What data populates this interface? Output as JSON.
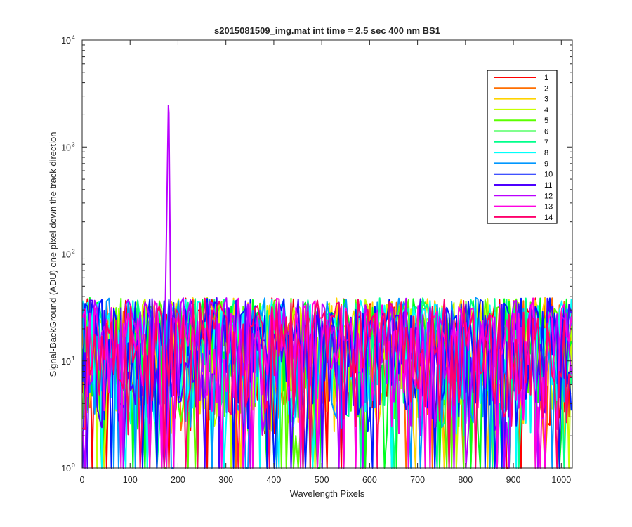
{
  "chart_data": {
    "type": "line",
    "title": "s2015081509_img.mat int time = 2.5 sec  400 nm BS1",
    "xlabel": "Wavelength Pixels",
    "ylabel": "Signal-BackGround (ADU) one pixel down the track direction",
    "xlim": [
      0,
      1023
    ],
    "ylim": [
      1,
      10000
    ],
    "yscale": "log",
    "grid": false,
    "legend_placement": "top-right",
    "x_ticks": [
      "0",
      "100",
      "200",
      "300",
      "400",
      "500",
      "600",
      "700",
      "800",
      "900",
      "1000"
    ],
    "y_ticks": [
      {
        "base": "10",
        "exp": "0"
      },
      {
        "base": "10",
        "exp": "1"
      },
      {
        "base": "10",
        "exp": "2"
      },
      {
        "base": "10",
        "exp": "3"
      },
      {
        "base": "10",
        "exp": "4"
      }
    ],
    "x_range": [
      1,
      1023
    ],
    "noise_range_adu": [
      1,
      45
    ],
    "series": [
      {
        "name": "1",
        "color": "#ff0000"
      },
      {
        "name": "2",
        "color": "#ff6e00"
      },
      {
        "name": "3",
        "color": "#ffd300"
      },
      {
        "name": "4",
        "color": "#c6ff00"
      },
      {
        "name": "5",
        "color": "#5bff00"
      },
      {
        "name": "6",
        "color": "#00ff1d"
      },
      {
        "name": "7",
        "color": "#00ff8c"
      },
      {
        "name": "8",
        "color": "#00fffb"
      },
      {
        "name": "9",
        "color": "#0097ff"
      },
      {
        "name": "10",
        "color": "#0019ff"
      },
      {
        "name": "11",
        "color": "#4d00ff"
      },
      {
        "name": "12",
        "color": "#b900ff",
        "peak": {
          "x": 180,
          "y": 2450
        }
      },
      {
        "name": "13",
        "color": "#ff00e0"
      },
      {
        "name": "14",
        "color": "#ff006b"
      }
    ]
  }
}
